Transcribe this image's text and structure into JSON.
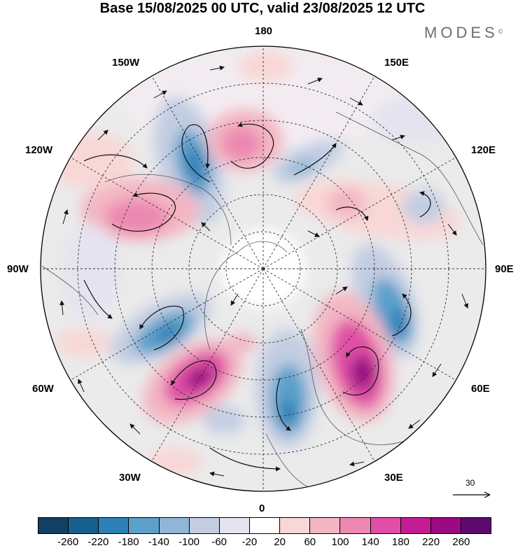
{
  "title": "Base 15/08/2025 00 UTC, valid 23/08/2025 12 UTC",
  "brand": {
    "name": "MODES",
    "mark": "©"
  },
  "longitude_labels": {
    "north": "180",
    "south": "0",
    "west": "90W",
    "east": "90E",
    "w150": "150W",
    "w120": "120W",
    "w60": "60W",
    "w30": "30W",
    "e150": "150E",
    "e120": "120E",
    "e60": "60E",
    "e30": "30E"
  },
  "colorbar": {
    "colors": [
      "#133f60",
      "#175f8e",
      "#2c80b7",
      "#5ca0cb",
      "#8fb6d6",
      "#c3cde2",
      "#e4e3ef",
      "#ffffff",
      "#f8d7d6",
      "#f3b6c3",
      "#ec88b1",
      "#e04fa5",
      "#c41c93",
      "#9b0a82",
      "#5d0a6e"
    ],
    "ticks": [
      "-260",
      "-220",
      "-180",
      "-140",
      "-100",
      "-60",
      "-20",
      "20",
      "60",
      "100",
      "140",
      "180",
      "220",
      "260"
    ]
  },
  "reference_vector": {
    "label": "30"
  }
}
